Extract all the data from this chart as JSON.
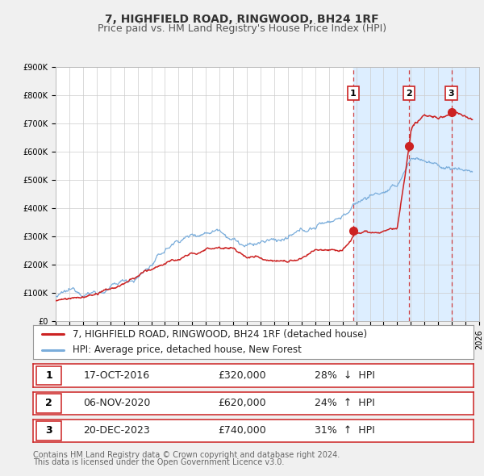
{
  "title": "7, HIGHFIELD ROAD, RINGWOOD, BH24 1RF",
  "subtitle": "Price paid vs. HM Land Registry's House Price Index (HPI)",
  "xlim": [
    1995,
    2026
  ],
  "ylim": [
    0,
    900000
  ],
  "yticks": [
    0,
    100000,
    200000,
    300000,
    400000,
    500000,
    600000,
    700000,
    800000,
    900000
  ],
  "ytick_labels": [
    "£0",
    "£100K",
    "£200K",
    "£300K",
    "£400K",
    "£500K",
    "£600K",
    "£700K",
    "£800K",
    "£900K"
  ],
  "background_color": "#f0f0f0",
  "plot_bg_color": "#ffffff",
  "grid_color": "#cccccc",
  "sale_color": "#cc2222",
  "hpi_color": "#7aaddb",
  "sale_label": "7, HIGHFIELD ROAD, RINGWOOD, BH24 1RF (detached house)",
  "hpi_label": "HPI: Average price, detached house, New Forest",
  "band_color": "#ddeeff",
  "hatch_color": "#ccddee",
  "transactions": [
    {
      "num": 1,
      "date_label": "17-OCT-2016",
      "date_x": 2016.79,
      "price": 320000,
      "pct": "28%",
      "direction": "↓",
      "hpi_rel": "HPI"
    },
    {
      "num": 2,
      "date_label": "06-NOV-2020",
      "date_x": 2020.85,
      "price": 620000,
      "pct": "24%",
      "direction": "↑",
      "hpi_rel": "HPI"
    },
    {
      "num": 3,
      "date_label": "20-DEC-2023",
      "date_x": 2023.97,
      "price": 740000,
      "pct": "31%",
      "direction": "↑",
      "hpi_rel": "HPI"
    }
  ],
  "footer_line1": "Contains HM Land Registry data © Crown copyright and database right 2024.",
  "footer_line2": "This data is licensed under the Open Government Licence v3.0.",
  "title_fontsize": 10,
  "subtitle_fontsize": 9,
  "tick_fontsize": 7,
  "legend_fontsize": 8.5,
  "table_fontsize": 9,
  "footer_fontsize": 7
}
